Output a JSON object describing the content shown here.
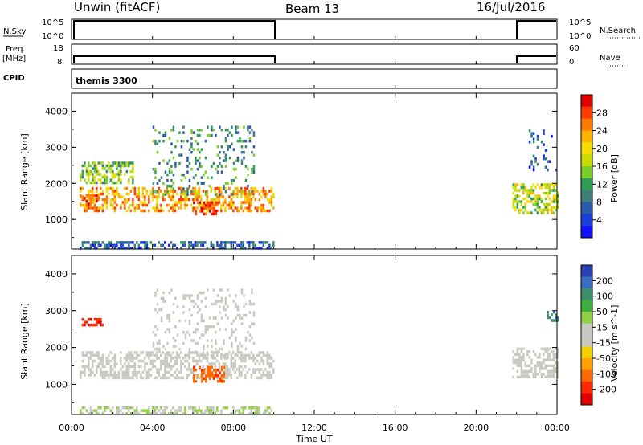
{
  "header": {
    "title": "Unwin (fitACF)",
    "beam": "Beam 13",
    "date": "16/Jul/2016"
  },
  "strips": {
    "nsky_label": "N.Sky",
    "nsky_tick_top": "10^5",
    "nsky_tick_bottom": "10^0",
    "nsearch_label": "N.Search",
    "nsearch_tick_top": "10^5",
    "nsearch_tick_bottom": "10^0",
    "freq_label_1": "Freq.",
    "freq_label_2": "[MHz]",
    "freq_tick_top": "18",
    "freq_tick_bottom": "8",
    "nave_label": "Nave",
    "nave_tick_top": "60",
    "nave_tick_bottom": "0",
    "cpid_label": "CPID",
    "cpid_value": "themis 3300"
  },
  "colorbars": {
    "power": {
      "label": "Power [dB]",
      "ticks": [
        "28",
        "24",
        "20",
        "16",
        "12",
        "8",
        "4"
      ],
      "colors": [
        "#e00000",
        "#ff3b00",
        "#ff7a00",
        "#ffb300",
        "#f5dc00",
        "#c8dc00",
        "#7ccc2a",
        "#2e9e54",
        "#3f7f7a",
        "#2b5aa8",
        "#1a3fd8",
        "#1010ff"
      ]
    },
    "velocity": {
      "label": "Velocity [m s^-1]",
      "ticks": [
        "200",
        "100",
        "50",
        "15",
        "-15",
        "-50",
        "-100",
        "-200"
      ],
      "colors": [
        "#2a3fb0",
        "#3a6cc0",
        "#3f8e6a",
        "#3fae3a",
        "#8fd044",
        "#c8c8c0",
        "#c8c8c0",
        "#f5d000",
        "#ffa000",
        "#ff6a00",
        "#ff2a00",
        "#e00000"
      ]
    }
  },
  "chart_data": [
    {
      "type": "heatmap",
      "title": "Power",
      "xlabel": "Time UT",
      "ylabel": "Slant Range [km]",
      "x_ticks": [
        "00:00",
        "04:00",
        "08:00",
        "12:00",
        "16:00",
        "20:00",
        "00:00"
      ],
      "y_ticks": [
        1000,
        2000,
        3000,
        4000
      ],
      "xlim_hours": [
        0,
        24
      ],
      "ylim_km": [
        180,
        4500
      ],
      "zlim_db": [
        0,
        30
      ],
      "data_intervals_hours": [
        [
          0.3,
          10.0
        ],
        [
          21.8,
          24.0
        ]
      ],
      "echo_regions": [
        {
          "t": [
            0.4,
            10.0
          ],
          "range_km": [
            1200,
            1900
          ],
          "value": 22
        },
        {
          "t": [
            0.4,
            1.2
          ],
          "range_km": [
            1400,
            1700
          ],
          "value": 26
        },
        {
          "t": [
            6.0,
            7.2
          ],
          "range_km": [
            1150,
            1500
          ],
          "value": 28
        },
        {
          "t": [
            4.0,
            9.0
          ],
          "range_km": [
            1700,
            3600
          ],
          "value": 10
        },
        {
          "t": [
            0.4,
            3.0
          ],
          "range_km": [
            2000,
            2600
          ],
          "value": 14
        },
        {
          "t": [
            21.8,
            24.0
          ],
          "range_km": [
            1200,
            2000
          ],
          "value": 16
        },
        {
          "t": [
            22.5,
            24.0
          ],
          "range_km": [
            2400,
            3500
          ],
          "value": 6
        },
        {
          "t": [
            0.4,
            10.0
          ],
          "range_km": [
            200,
            400
          ],
          "value": 6
        }
      ]
    },
    {
      "type": "heatmap",
      "title": "Velocity",
      "xlabel": "Time UT",
      "ylabel": "Slant Range [km]",
      "x_ticks": [
        "00:00",
        "04:00",
        "08:00",
        "12:00",
        "16:00",
        "20:00",
        "00:00"
      ],
      "y_ticks": [
        1000,
        2000,
        3000,
        4000
      ],
      "xlim_hours": [
        0,
        24
      ],
      "ylim_km": [
        180,
        4500
      ],
      "zlim_ms": [
        -250,
        250
      ],
      "data_intervals_hours": [
        [
          0.3,
          10.0
        ],
        [
          21.8,
          24.0
        ]
      ],
      "echo_regions": [
        {
          "t": [
            0.4,
            10.0
          ],
          "range_km": [
            1200,
            1900
          ],
          "value": 0
        },
        {
          "t": [
            6.0,
            7.5
          ],
          "range_km": [
            1100,
            1500
          ],
          "value": -150
        },
        {
          "t": [
            0.5,
            1.5
          ],
          "range_km": [
            2600,
            2800
          ],
          "value": -200
        },
        {
          "t": [
            4.0,
            9.0
          ],
          "range_km": [
            1700,
            3600
          ],
          "value": 0
        },
        {
          "t": [
            21.8,
            24.0
          ],
          "range_km": [
            1200,
            2000
          ],
          "value": 0
        },
        {
          "t": [
            23.5,
            24.0
          ],
          "range_km": [
            2700,
            3000
          ],
          "value": 150
        },
        {
          "t": [
            0.4,
            10.0
          ],
          "range_km": [
            200,
            400
          ],
          "value": 40
        }
      ]
    }
  ]
}
